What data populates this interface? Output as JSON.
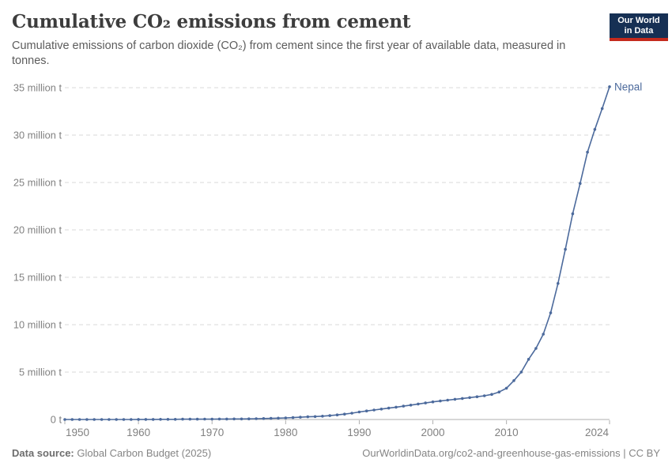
{
  "header": {
    "title": "Cumulative CO₂ emissions from cement",
    "subtitle": "Cumulative emissions of carbon dioxide (CO₂) from cement since the first year of available data, measured in tonnes.",
    "logo": {
      "line1": "Our World",
      "line2": "in Data"
    }
  },
  "colors": {
    "line": "#4C6A9C",
    "gridline": "#d9d9d9",
    "axis_line": "#afafaf",
    "axis_text": "#818181",
    "title_text": "#3d3d3d",
    "subtitle_text": "#5c5c5c",
    "logo_bg": "#163054",
    "logo_bar": "#c42a1d"
  },
  "chart_data": {
    "type": "line",
    "title": "Cumulative CO₂ emissions from cement",
    "xlabel": "",
    "ylabel": "",
    "unit": "million tonnes",
    "grid": true,
    "gridline_style": "dashed horizontal",
    "legend_position": "end-of-line label",
    "x_range": [
      1950,
      2024
    ],
    "y_range_million_t": [
      0,
      35
    ],
    "x_ticks": [
      1950,
      1960,
      1970,
      1980,
      1990,
      2000,
      2010,
      2024
    ],
    "y_ticks": [
      {
        "value": 0,
        "label": "0 t"
      },
      {
        "value": 5,
        "label": "5 million t"
      },
      {
        "value": 10,
        "label": "10 million t"
      },
      {
        "value": 15,
        "label": "15 million t"
      },
      {
        "value": 20,
        "label": "20 million t"
      },
      {
        "value": 25,
        "label": "25 million t"
      },
      {
        "value": 30,
        "label": "30 million t"
      },
      {
        "value": 35,
        "label": "35 million t"
      }
    ],
    "end_label": "Nepal",
    "series": [
      {
        "name": "Nepal",
        "color": "#4C6A9C",
        "x": [
          1950,
          1951,
          1952,
          1953,
          1954,
          1955,
          1956,
          1957,
          1958,
          1959,
          1960,
          1961,
          1962,
          1963,
          1964,
          1965,
          1966,
          1967,
          1968,
          1969,
          1970,
          1971,
          1972,
          1973,
          1974,
          1975,
          1976,
          1977,
          1978,
          1979,
          1980,
          1981,
          1982,
          1983,
          1984,
          1985,
          1986,
          1987,
          1988,
          1989,
          1990,
          1991,
          1992,
          1993,
          1994,
          1995,
          1996,
          1997,
          1998,
          1999,
          2000,
          2001,
          2002,
          2003,
          2004,
          2005,
          2006,
          2007,
          2008,
          2009,
          2010,
          2011,
          2012,
          2013,
          2014,
          2015,
          2016,
          2017,
          2018,
          2019,
          2020,
          2021,
          2022,
          2023,
          2024
        ],
        "values_million_t": [
          0,
          0,
          0,
          0,
          0,
          0,
          0,
          0,
          0,
          0,
          0.01,
          0.01,
          0.01,
          0.02,
          0.02,
          0.02,
          0.03,
          0.03,
          0.03,
          0.04,
          0.04,
          0.05,
          0.05,
          0.06,
          0.06,
          0.07,
          0.08,
          0.1,
          0.12,
          0.14,
          0.17,
          0.2,
          0.24,
          0.28,
          0.31,
          0.35,
          0.41,
          0.48,
          0.57,
          0.67,
          0.79,
          0.9,
          1.0,
          1.1,
          1.2,
          1.3,
          1.41,
          1.52,
          1.63,
          1.74,
          1.86,
          1.95,
          2.04,
          2.13,
          2.22,
          2.31,
          2.4,
          2.5,
          2.65,
          2.9,
          3.3,
          4.1,
          5.0,
          6.35,
          7.5,
          9.0,
          11.25,
          14.35,
          17.95,
          21.7,
          24.9,
          28.2,
          30.6,
          32.8,
          35.1
        ]
      }
    ]
  },
  "footer": {
    "source_label": "Data source:",
    "source_value": "Global Carbon Budget (2025)",
    "credit": "OurWorldinData.org/co2-and-greenhouse-gas-emissions | CC BY"
  }
}
